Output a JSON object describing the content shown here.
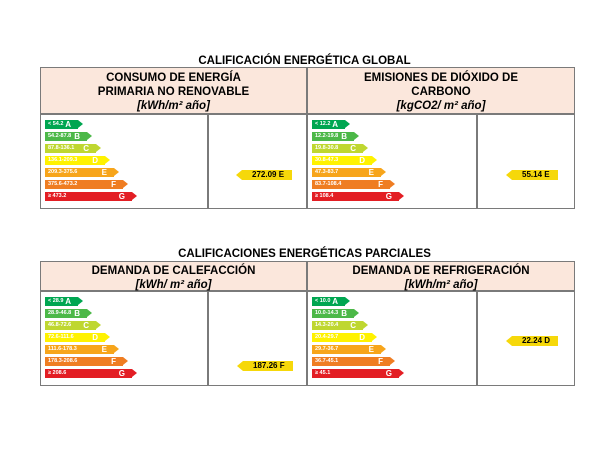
{
  "global": {
    "title": "CALIFICACIÓN ENERGÉTICA GLOBAL",
    "panels": [
      {
        "title_line1": "CONSUMO DE ENERGÍA",
        "title_line2": "PRIMARIA NO RENOVABLE",
        "unit": "[kWh/m² año]",
        "ranges": [
          "< 54.2",
          "54.2-87.8",
          "87.8-136.1",
          "136.1-209.3",
          "209.3-375.6",
          "375.6-473.2",
          "≥ 473.2"
        ],
        "value": "272.09 E"
      },
      {
        "title_line1": "EMISIONES DE DIÓXIDO DE",
        "title_line2": "CARBONO",
        "unit": "[kgCO2/ m² año]",
        "ranges": [
          "< 12.2",
          "12.2-19.8",
          "19.8-30.8",
          "30.8-47.3",
          "47.3-83.7",
          "83.7-108.4",
          "≥ 108.4"
        ],
        "value": "55.14 E"
      }
    ]
  },
  "partial": {
    "title": "CALIFICACIONES ENERGÉTICAS PARCIALES",
    "panels": [
      {
        "title": "DEMANDA DE CALEFACCIÓN",
        "unit": "[kWh/ m² año]",
        "ranges": [
          "< 28.9",
          "28.9-46.8",
          "46.8-72.6",
          "72.6-111.6",
          "111.6-178.3",
          "178.3-208.6",
          "≥ 208.6"
        ],
        "value": "187.26 F"
      },
      {
        "title": "DEMANDA DE REFRIGERACIÓN",
        "unit": "[kWh/m² año]",
        "ranges": [
          "< 10.0",
          "10.0-14.3",
          "14.3-20.4",
          "20.4-29.7",
          "29.7-36.7",
          "36.7-45.1",
          "≥ 45.1"
        ],
        "value": "22.24 D"
      }
    ]
  },
  "letters": [
    "A",
    "B",
    "C",
    "D",
    "E",
    "F",
    "G"
  ],
  "colors": [
    "#00a651",
    "#4cb848",
    "#bfd730",
    "#fff200",
    "#f7a51b",
    "#ef7d22",
    "#e31e24"
  ]
}
